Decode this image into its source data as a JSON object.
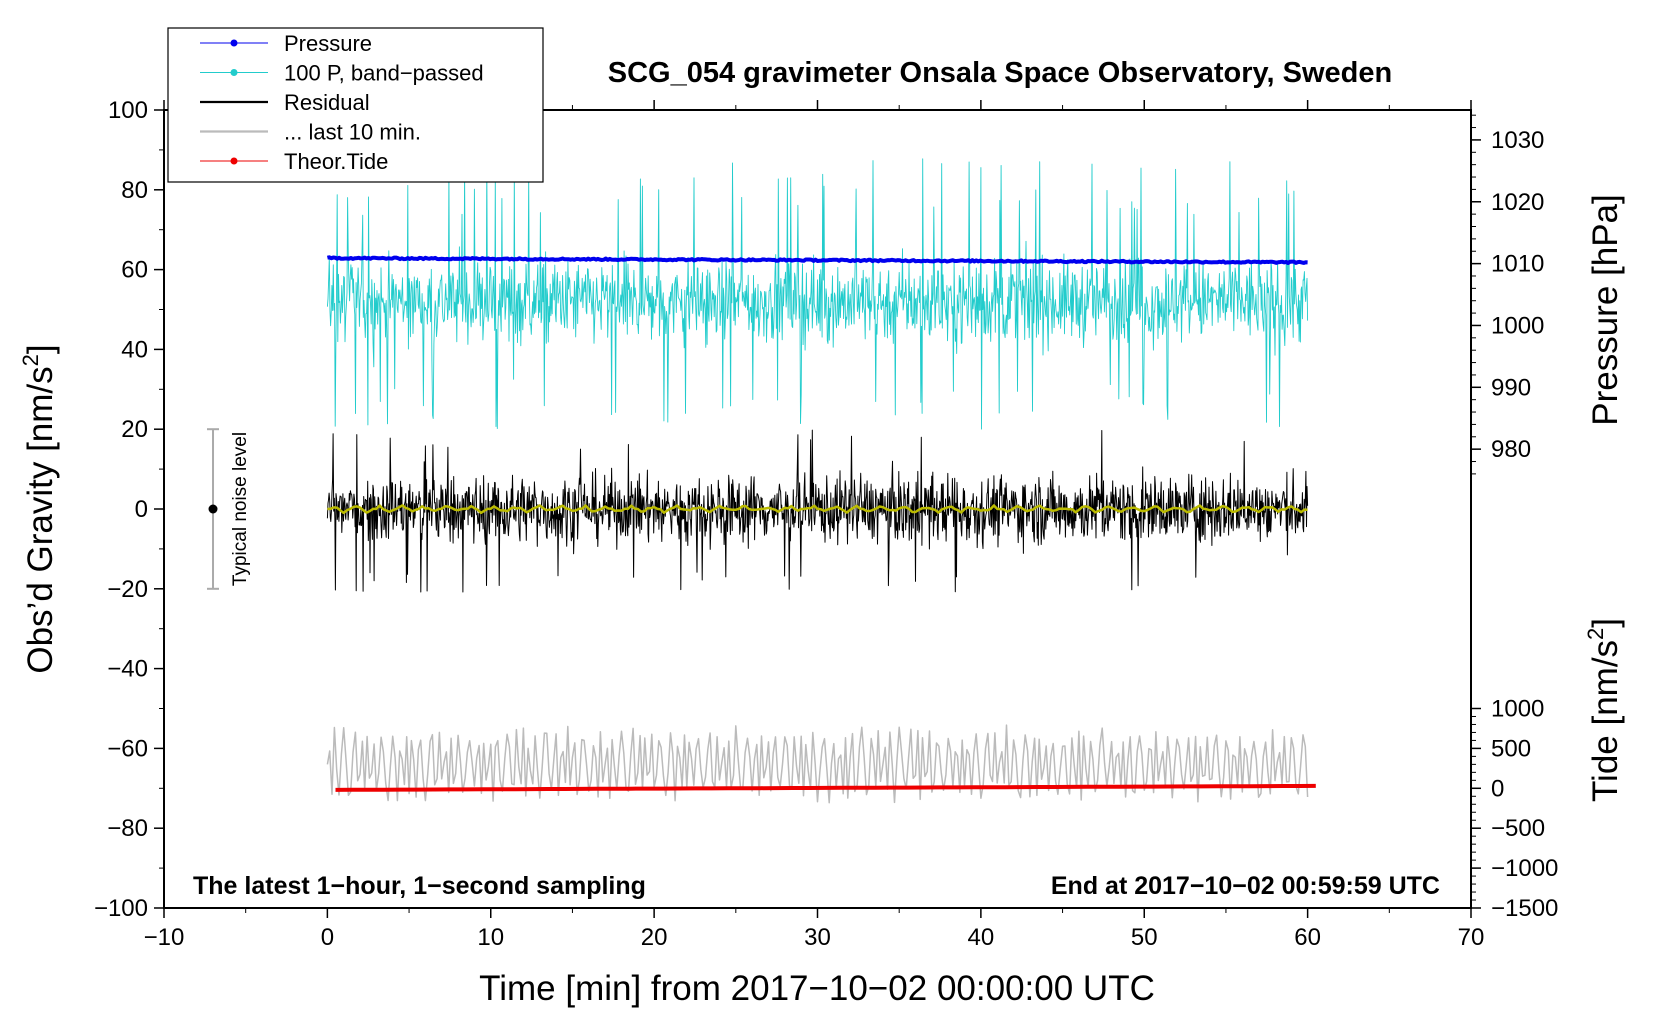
{
  "chart_data": {
    "type": "line",
    "title": "SCG_054 gravimeter Onsala Space Observatory, Sweden",
    "xlabel": "Time [min] from 2017−10−02 00:00:00 UTC",
    "ylabel_main": "Obs’d Gravity [nm/s",
    "ylabel_main_sup": "2",
    "ylabel_main_close": "]",
    "ylabel_pressure": "Pressure [hPa]",
    "ylabel_tide": "Tide [nm/s",
    "ylabel_tide_sup": "2",
    "ylabel_tide_close": "]",
    "annotation_left": "The latest 1−hour, 1−second sampling",
    "annotation_right": "End at 2017−10−02 00:59:59 UTC",
    "noise_label": "Typical noise level",
    "noise_range": [
      -20,
      20
    ],
    "noise_x": -7,
    "xlim": [
      -10,
      70
    ],
    "ylim": [
      -100,
      100
    ],
    "x_ticks": [
      "−10",
      "0",
      "10",
      "20",
      "30",
      "40",
      "50",
      "60",
      "70"
    ],
    "y_ticks": [
      "−100",
      "−80",
      "−60",
      "−40",
      "−20",
      "0",
      "20",
      "40",
      "60",
      "80",
      "100"
    ],
    "pressure_ticks": [
      "980",
      "990",
      "1000",
      "1010",
      "1020",
      "1030"
    ],
    "pressure_axis": {
      "hpa_at_980": 980,
      "gravity_at_980": 15,
      "gravity_per_hpa": 1.55
    },
    "tide_ticks": [
      "1000",
      "500",
      "0",
      "−500",
      "−1000",
      "−1500"
    ],
    "tide_axis": {
      "tide_min": -1500,
      "tide_max": 1000,
      "gravity_at_min": -100,
      "gravity_at_max": -50
    },
    "legend": [
      {
        "label": "Pressure",
        "color": "#0000ee",
        "marker": true
      },
      {
        "label": "100 P, band−passed",
        "color": "#22cccc",
        "marker": true
      },
      {
        "label": "Residual",
        "color": "#000000",
        "marker": false
      },
      {
        "label": "... last 10 min.",
        "color": "#bbbbbb",
        "marker": false
      },
      {
        "label": "Theor.Tide",
        "color": "#ee0000",
        "marker": true
      }
    ],
    "series": [
      {
        "name": "Pressure",
        "color": "#0000ee",
        "unit": "hPa",
        "x_range": [
          0,
          60
        ],
        "start": 1010.9,
        "end": 1010.2,
        "noise": 0.25
      },
      {
        "name": "100 P, band−passed",
        "color": "#22cccc",
        "unit": "nm/s2",
        "x_range": [
          0,
          60
        ],
        "mean": 52,
        "amplitude": 9,
        "spike_max": 88,
        "spike_min": 20
      },
      {
        "name": "Residual",
        "color": "#000000",
        "unit": "nm/s2",
        "x_range": [
          0,
          60
        ],
        "mean": 0,
        "amplitude": 10,
        "max": 20,
        "min": -21
      },
      {
        "name": "Residual smoothed",
        "color": "#bbbb00",
        "unit": "nm/s2",
        "x_range": [
          0,
          60
        ],
        "mean": 0,
        "amplitude": 1
      },
      {
        "name": "... last 10 min.",
        "color": "#bbbbbb",
        "unit": "nm/s2",
        "x_range": [
          0,
          60
        ],
        "mean": -64,
        "amplitude": 9,
        "min": -76,
        "max": -47
      },
      {
        "name": "Theor.Tide",
        "color": "#ee0000",
        "unit": "nm/s2",
        "x_range": [
          0.5,
          60.5
        ],
        "start": -20,
        "end": 30
      }
    ]
  }
}
